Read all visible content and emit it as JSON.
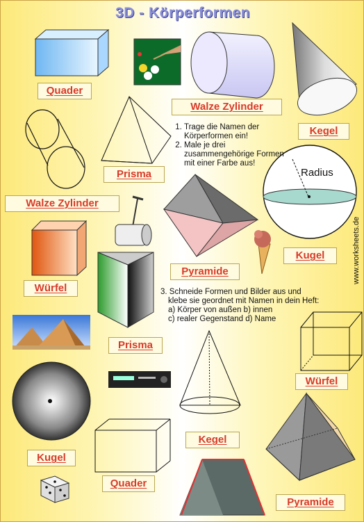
{
  "title": "3D - Körperformen",
  "side_text": "www.worksheets.de",
  "radius_label": "Radius",
  "labels": {
    "quader_1": "Quader",
    "walze_zylinder_1": "Walze   Zylinder",
    "kegel_1": "Kegel",
    "prisma_1": "Prisma",
    "walze_zylinder_2": "Walze   Zylinder",
    "pyramide_1": "Pyramide",
    "kugel_1": "Kugel",
    "wuerfel_1": "Würfel",
    "prisma_2": "Prisma",
    "wuerfel_2": "Würfel",
    "kegel_2": "Kegel",
    "kugel_2": "Kugel",
    "quader_2": "Quader",
    "pyramide_2": "Pyramide"
  },
  "instructions_1": [
    "Trage die Namen der Körperformen ein!",
    "Male je drei zusammengehörige Formen mit einer Farbe aus!"
  ],
  "instructions_2": {
    "number": "3.",
    "line1": "Schneide Formen und Bilder aus und",
    "line2": "klebe sie geordnet mit Namen in dein Heft:",
    "line3": "a) Körper von außen b) innen",
    "line4": "c) realer Gegenstand d) Name"
  }
}
